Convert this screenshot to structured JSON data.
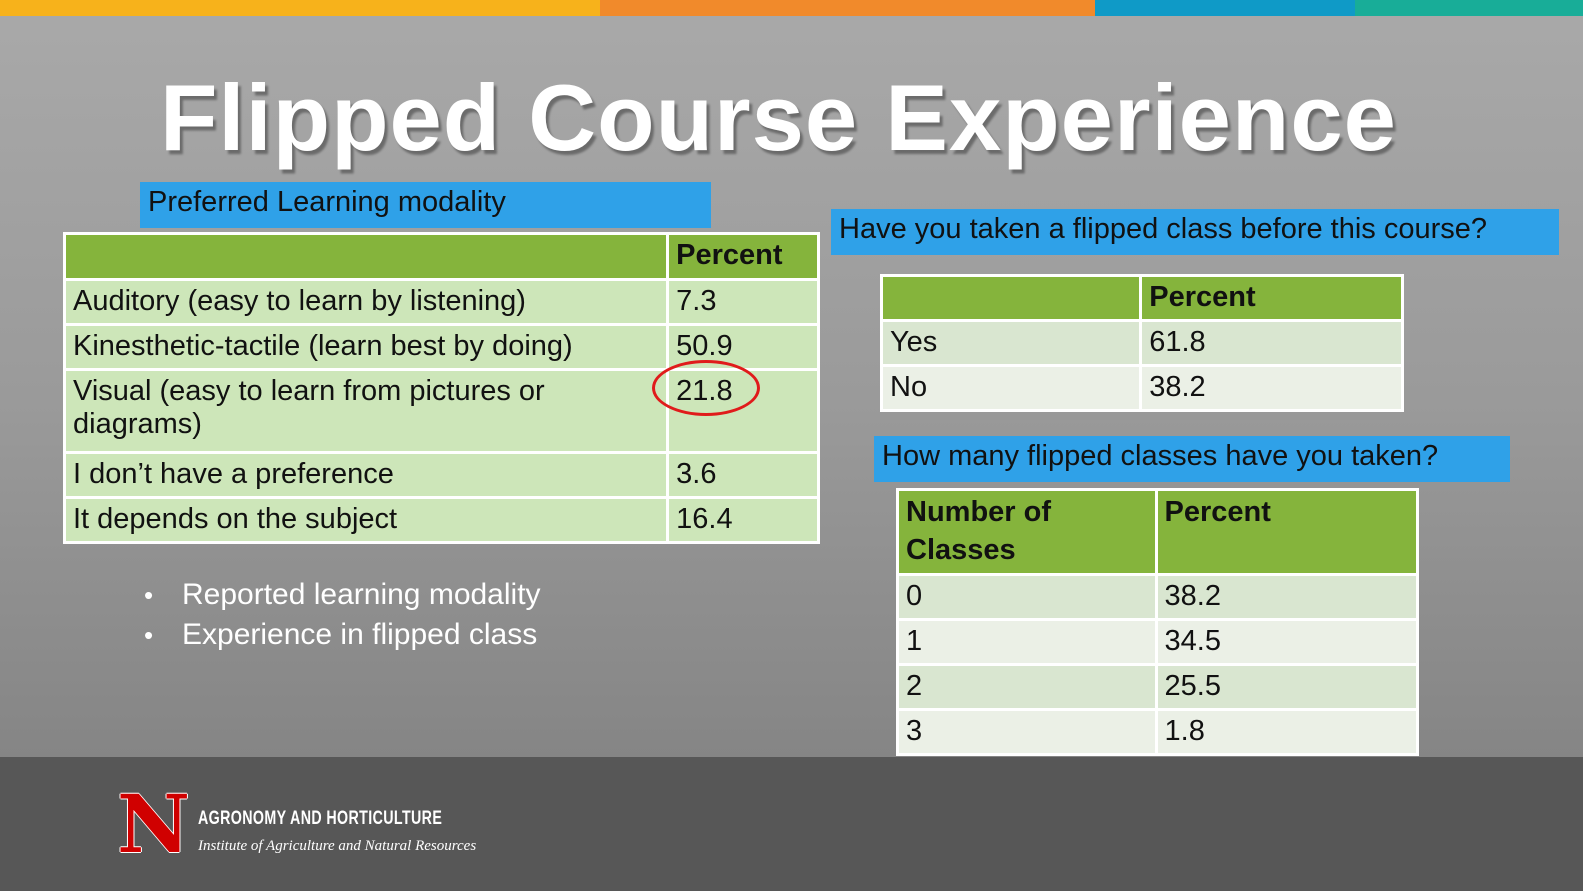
{
  "title": "Flipped Course Experience",
  "accent_colors": {
    "topbar": [
      "#f7b21b",
      "#f18a2b",
      "#0f9ac7",
      "#18ad98"
    ],
    "label_blue": "#2fa1e8",
    "table_header": "#85b43c",
    "table_body": "#cde6b9",
    "highlight_circle": "#e01b1b",
    "logo_red": "#d00000"
  },
  "modality": {
    "label": "Preferred Learning modality",
    "header": [
      "",
      "Percent"
    ],
    "rows": [
      [
        "Auditory (easy to learn by listening)",
        "7.3"
      ],
      [
        "Kinesthetic-tactile (learn best by doing)",
        "50.9"
      ],
      [
        "Visual (easy to learn from pictures or diagrams)",
        "21.8"
      ],
      [
        "I don’t have a preference",
        "3.6"
      ],
      [
        "It depends on the subject",
        "16.4"
      ]
    ]
  },
  "taken_before": {
    "label": "Have you taken a flipped class before this course?",
    "header": [
      "",
      "Percent"
    ],
    "rows": [
      [
        "Yes",
        "61.8"
      ],
      [
        "No",
        "38.2"
      ]
    ]
  },
  "how_many": {
    "label": "How many flipped classes have you  taken?",
    "header": [
      "Number of Classes",
      "Percent"
    ],
    "rows": [
      [
        "0",
        "38.2"
      ],
      [
        "1",
        "34.5"
      ],
      [
        "2",
        "25.5"
      ],
      [
        "3",
        "1.8"
      ]
    ]
  },
  "bullets": [
    "Reported learning modality",
    "Experience in flipped class"
  ],
  "footer": {
    "logo_letter": "N",
    "department": "AGRONOMY AND HORTICULTURE",
    "institute": "Institute of Agriculture and Natural Resources"
  }
}
